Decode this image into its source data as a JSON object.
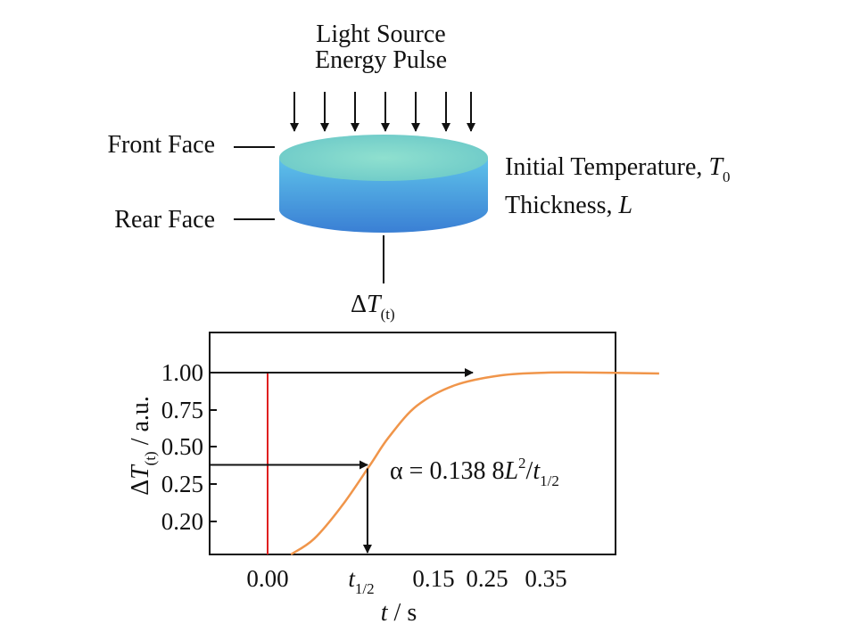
{
  "diagram": {
    "light_source_line1": "Light Source",
    "light_source_line2": "Energy Pulse",
    "front_face": "Front Face",
    "rear_face": "Rear Face",
    "initial_temperature": {
      "text": "Initial Temperature, ",
      "symbol": "T",
      "subscript": "0"
    },
    "thickness": {
      "text": "Thickness, ",
      "symbol": "L"
    },
    "delta_t": {
      "prefix": "Δ",
      "symbol": "T",
      "subscript": "(t)"
    },
    "disc_colors": {
      "top": "#7fd6c9",
      "side_top": "#4fb8e8",
      "side_bottom": "#3a84d6"
    }
  },
  "chart_data": {
    "type": "line",
    "x_tick_labels": [
      "0.00",
      "t1/2",
      "0.15",
      "0.25",
      "0.35"
    ],
    "y_tick_labels": [
      "1.00",
      "0.75",
      "0.50",
      "0.25",
      "0.20"
    ],
    "xlabel": {
      "symbol": "t",
      "unit": " / s"
    },
    "ylabel": {
      "prefix": "Δ",
      "symbol": "T",
      "subscript": "(t)",
      "unit": " / a.u."
    },
    "t_half_label": {
      "symbol": "t",
      "subscript": "1/2"
    },
    "equation": {
      "lhs": "α = 0.138 8",
      "L": "L",
      "exp": "2",
      "slash": "/",
      "t": "t",
      "sub": "1/2"
    },
    "series": [
      {
        "color": "#f0954a",
        "points": [
          [
            0.025,
            0.0
          ],
          [
            0.05,
            0.1
          ],
          [
            0.08,
            0.28
          ],
          [
            0.11,
            0.5
          ],
          [
            0.13,
            0.65
          ],
          [
            0.16,
            0.82
          ],
          [
            0.2,
            0.93
          ],
          [
            0.25,
            0.985
          ],
          [
            0.3,
            1.0
          ],
          [
            0.35,
            1.0
          ],
          [
            0.42,
            0.995
          ]
        ]
      }
    ],
    "pulse_marker": {
      "x": 0.0,
      "color": "#e02020"
    },
    "half_point": {
      "x": 0.11,
      "y": 0.5
    },
    "max_arrow_end_x": 0.22
  }
}
